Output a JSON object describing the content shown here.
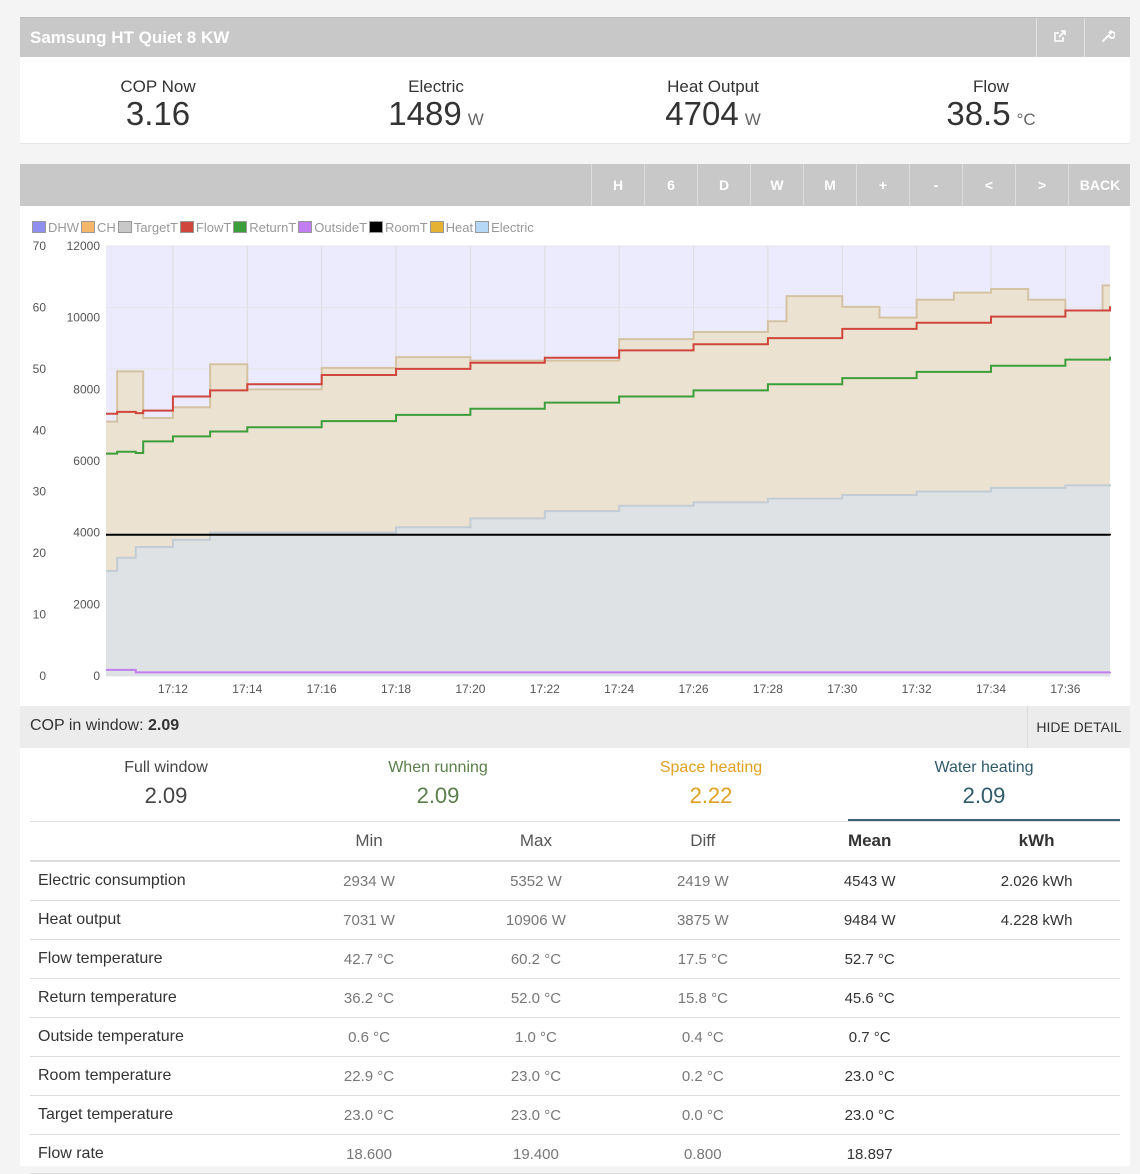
{
  "header": {
    "title": "Samsung HT Quiet 8 KW",
    "icons": [
      "share-icon",
      "wrench-icon"
    ]
  },
  "stats": [
    {
      "label": "COP Now",
      "value": "3.16",
      "unit": ""
    },
    {
      "label": "Electric",
      "value": "1489",
      "unit": "W"
    },
    {
      "label": "Heat Output",
      "value": "4704",
      "unit": "W"
    },
    {
      "label": "Flow",
      "value": "38.5",
      "unit": "°C"
    }
  ],
  "toolbar": {
    "buttons": [
      "H",
      "6",
      "D",
      "W",
      "M",
      "+",
      "-",
      "<",
      ">",
      "BACK"
    ]
  },
  "chart_data": {
    "type": "line",
    "legend": [
      {
        "name": "DHW",
        "color": "#8f8ff0"
      },
      {
        "name": "CH",
        "color": "#f5b76b"
      },
      {
        "name": "TargetT",
        "color": "#c8c8c8"
      },
      {
        "name": "FlowT",
        "color": "#d0463c"
      },
      {
        "name": "ReturnT",
        "color": "#3c9f3c"
      },
      {
        "name": "OutsideT",
        "color": "#c07ef0"
      },
      {
        "name": "RoomT",
        "color": "#000000"
      },
      {
        "name": "Heat",
        "color": "#e6b233"
      },
      {
        "name": "Electric",
        "color": "#b4d8f5"
      }
    ],
    "x_ticks": [
      "17:12",
      "17:14",
      "17:16",
      "17:18",
      "17:20",
      "17:22",
      "17:24",
      "17:26",
      "17:28",
      "17:30",
      "17:32",
      "17:34",
      "17:36"
    ],
    "x_range_min": [
      10.2,
      37.2
    ],
    "x_tick_minutes": [
      12,
      14,
      16,
      18,
      20,
      22,
      24,
      26,
      28,
      30,
      32,
      34,
      36
    ],
    "y_left_ticks": [
      "0",
      "10",
      "20",
      "30",
      "40",
      "50",
      "60",
      "70"
    ],
    "y_left_range": [
      0,
      70
    ],
    "y_right_ticks": [
      "0",
      "2000",
      "4000",
      "6000",
      "8000",
      "10000",
      "12000"
    ],
    "y_right_range": [
      0,
      12000
    ],
    "series": [
      {
        "name": "Heat",
        "axis": "right",
        "x": [
          10.2,
          10.5,
          11.0,
          11.2,
          12.0,
          13.0,
          13.5,
          14.0,
          16.0,
          18.0,
          20.0,
          22.0,
          24.0,
          26.0,
          28.0,
          28.5,
          30.0,
          31.0,
          32.0,
          33.0,
          34.0,
          35.0,
          36.0,
          37.0,
          37.2
        ],
        "y": [
          7100,
          8500,
          8500,
          7200,
          7500,
          8700,
          8700,
          8000,
          8600,
          8900,
          8800,
          8800,
          9400,
          9600,
          9900,
          10600,
          10300,
          10000,
          10500,
          10700,
          10800,
          10500,
          10200,
          10900,
          10900
        ]
      },
      {
        "name": "Electric",
        "axis": "right",
        "x": [
          10.2,
          10.5,
          11.0,
          12.0,
          13.0,
          14.0,
          16.0,
          18.0,
          20.0,
          22.0,
          24.0,
          26.0,
          28.0,
          30.0,
          32.0,
          34.0,
          36.0,
          37.2
        ],
        "y": [
          2934,
          3300,
          3600,
          3800,
          4000,
          4000,
          4000,
          4150,
          4400,
          4600,
          4750,
          4850,
          4950,
          5050,
          5150,
          5250,
          5320,
          5352
        ]
      },
      {
        "name": "FlowT",
        "axis": "left",
        "x": [
          10.2,
          10.5,
          11.0,
          11.2,
          12.0,
          13.0,
          14.0,
          16.0,
          18.0,
          20.0,
          22.0,
          24.0,
          26.0,
          28.0,
          30.0,
          32.0,
          34.0,
          36.0,
          37.2
        ],
        "y": [
          42.7,
          43.0,
          42.8,
          43.2,
          45.5,
          46.5,
          47.5,
          49.0,
          50.0,
          51.0,
          51.8,
          53.0,
          54.0,
          55.0,
          56.5,
          57.5,
          58.5,
          59.5,
          60.2
        ]
      },
      {
        "name": "ReturnT",
        "axis": "left",
        "x": [
          10.2,
          10.5,
          11.0,
          11.2,
          12.0,
          13.0,
          14.0,
          16.0,
          18.0,
          20.0,
          22.0,
          24.0,
          26.0,
          28.0,
          30.0,
          32.0,
          34.0,
          36.0,
          37.2
        ],
        "y": [
          36.2,
          36.5,
          36.3,
          38.2,
          39.0,
          39.8,
          40.5,
          41.5,
          42.5,
          43.5,
          44.5,
          45.5,
          46.5,
          47.5,
          48.5,
          49.5,
          50.5,
          51.5,
          52.0
        ]
      },
      {
        "name": "RoomT",
        "axis": "left",
        "x": [
          10.2,
          37.2
        ],
        "y": [
          23.0,
          22.9
        ]
      },
      {
        "name": "OutsideT",
        "axis": "left",
        "x": [
          10.2,
          11.0,
          37.2
        ],
        "y": [
          1.0,
          0.6,
          0.7
        ]
      }
    ]
  },
  "cop_window": {
    "label": "COP in window:",
    "value": "2.09",
    "toggle_label": "HIDE DETAIL"
  },
  "cop_tabs": [
    {
      "label": "Full window",
      "value": "2.09",
      "color": "#444444"
    },
    {
      "label": "When running",
      "value": "2.09",
      "color": "#5a7f4a"
    },
    {
      "label": "Space heating",
      "value": "2.22",
      "color": "#e0a020"
    },
    {
      "label": "Water heating",
      "value": "2.09",
      "color": "#2f5a6c"
    }
  ],
  "table": {
    "headers": [
      "",
      "Min",
      "Max",
      "Diff",
      "Mean",
      "kWh"
    ],
    "rows": [
      {
        "name": "Electric consumption",
        "min": "2934 W",
        "max": "5352 W",
        "diff": "2419 W",
        "mean": "4543 W",
        "kwh": "2.026 kWh"
      },
      {
        "name": "Heat output",
        "min": "7031 W",
        "max": "10906 W",
        "diff": "3875 W",
        "mean": "9484 W",
        "kwh": "4.228 kWh"
      },
      {
        "name": "Flow temperature",
        "min": "42.7 °C",
        "max": "60.2 °C",
        "diff": "17.5 °C",
        "mean": "52.7 °C",
        "kwh": ""
      },
      {
        "name": "Return temperature",
        "min": "36.2 °C",
        "max": "52.0 °C",
        "diff": "15.8 °C",
        "mean": "45.6 °C",
        "kwh": ""
      },
      {
        "name": "Outside temperature",
        "min": "0.6 °C",
        "max": "1.0 °C",
        "diff": "0.4 °C",
        "mean": "0.7 °C",
        "kwh": ""
      },
      {
        "name": "Room temperature",
        "min": "22.9 °C",
        "max": "23.0 °C",
        "diff": "0.2 °C",
        "mean": "23.0 °C",
        "kwh": ""
      },
      {
        "name": "Target temperature",
        "min": "23.0 °C",
        "max": "23.0 °C",
        "diff": "0.0 °C",
        "mean": "23.0 °C",
        "kwh": ""
      },
      {
        "name": "Flow rate",
        "min": "18.600",
        "max": "19.400",
        "diff": "0.800",
        "mean": "18.897",
        "kwh": ""
      }
    ]
  }
}
